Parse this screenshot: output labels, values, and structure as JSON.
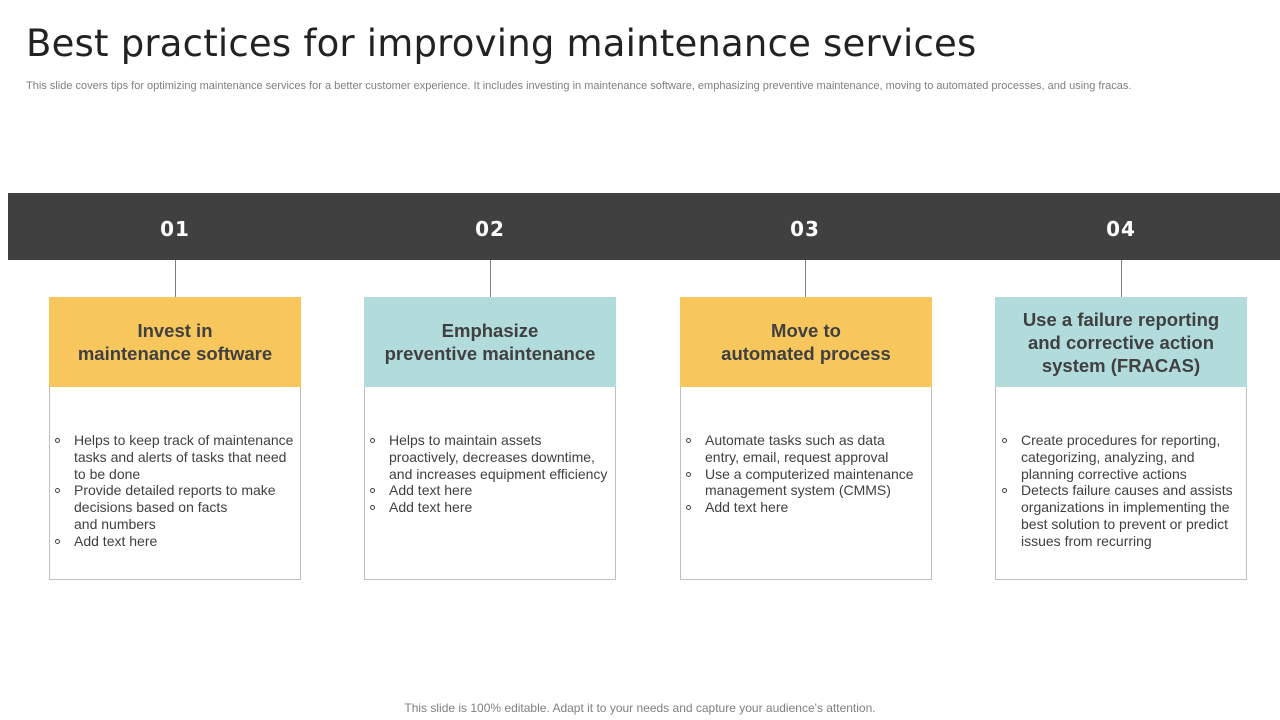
{
  "title": "Best practices for improving maintenance services",
  "subtitle": "This slide covers tips for optimizing maintenance services for a better customer experience. It includes investing in maintenance software, emphasizing preventive maintenance, moving to automated processes, and using fracas.",
  "steps": [
    {
      "number": "01",
      "heading": [
        "Invest in",
        "maintenance software"
      ],
      "color": "#f7c75d",
      "bullets": [
        [
          "Helps to keep track of maintenance",
          "tasks and alerts of tasks that need",
          "to be done"
        ],
        [
          "Provide detailed reports to make",
          "decisions based on facts",
          "and numbers"
        ],
        [
          "Add text here"
        ]
      ]
    },
    {
      "number": "02",
      "heading": [
        "Emphasize",
        "preventive maintenance"
      ],
      "color": "#b2dbdb",
      "bullets": [
        [
          "Helps to maintain assets",
          "proactively, decreases downtime,",
          "and increases equipment efficiency"
        ],
        [
          "Add text here"
        ],
        [
          "Add text here"
        ]
      ]
    },
    {
      "number": "03",
      "heading": [
        "Move to",
        "automated process"
      ],
      "color": "#f7c75d",
      "bullets": [
        [
          "Automate tasks such as data",
          "entry, email, request approval"
        ],
        [
          "Use a computerized maintenance",
          "management system (CMMS)"
        ],
        [
          "Add text here"
        ]
      ]
    },
    {
      "number": "04",
      "heading": [
        "Use a failure reporting",
        "and corrective action",
        "system (FRACAS)"
      ],
      "color": "#b2dbdb",
      "bullets": [
        [
          "Create procedures for reporting,",
          "categorizing, analyzing, and",
          "planning corrective actions"
        ],
        [
          "Detects failure causes and assists",
          "organizations in implementing the",
          "best solution to prevent or predict",
          "issues from recurring"
        ]
      ]
    }
  ],
  "footer": "This slide is 100% editable. Adapt it to your needs and capture your audience's attention."
}
